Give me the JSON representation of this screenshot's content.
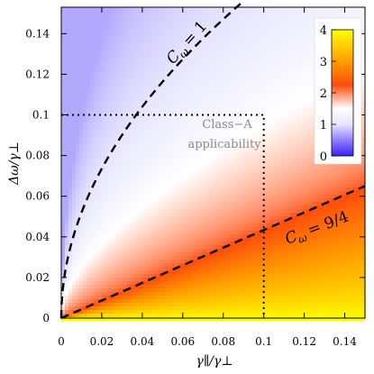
{
  "chart_data": {
    "type": "heatmap",
    "title": "",
    "xlabel": "γ∥/γ⊥",
    "ylabel": "Δω/γ⊥",
    "xlim": [
      0,
      0.15
    ],
    "ylim": [
      0,
      0.153
    ],
    "x_ticks": [
      0,
      0.02,
      0.04,
      0.06,
      0.08,
      0.1,
      0.12,
      0.14
    ],
    "x_tick_labels": [
      "0",
      "0.02",
      "0.04",
      "0.06",
      "0.08",
      "0.1",
      "0.12",
      "0.14"
    ],
    "y_ticks": [
      0,
      0.02,
      0.04,
      0.06,
      0.08,
      0.1,
      0.12,
      0.14
    ],
    "y_tick_labels": [
      "0",
      "0.02",
      "0.04",
      "0.06",
      "0.08",
      "0.1",
      "0.12",
      "0.14"
    ],
    "grid": false,
    "colorbar": {
      "position": "top-right",
      "range": [
        0,
        4
      ],
      "ticks": [
        0,
        1,
        2,
        3,
        4
      ],
      "tick_labels": [
        "0",
        "1",
        "2",
        "3",
        "4"
      ],
      "colors": [
        {
          "value": 0,
          "color": "#3a1eff"
        },
        {
          "value": 1,
          "color": "#e6e4ff"
        },
        {
          "value": 1.5,
          "color": "#ffffff"
        },
        {
          "value": 2.25,
          "color": "#ff4c0c"
        },
        {
          "value": 3,
          "color": "#ff9f00"
        },
        {
          "value": 4,
          "color": "#ffff00"
        }
      ]
    },
    "contours": [
      {
        "label": "C_ω = 1",
        "display": {
          "C": "C",
          "sub": "ω",
          "rhs": "= 1"
        },
        "level": 1,
        "x": [
          0,
          0.003,
          0.01,
          0.02,
          0.03,
          0.04,
          0.05,
          0.06,
          0.07
        ],
        "y": [
          0,
          0.0285,
          0.052,
          0.0735,
          0.09,
          0.104,
          0.1163,
          0.1274,
          0.1376
        ]
      },
      {
        "label": "C_ω = 9/4",
        "display": {
          "C": "C",
          "sub": "ω",
          "rhs": "= 9/4"
        },
        "level": 2.25,
        "x": [
          0,
          0.15
        ],
        "y": [
          0,
          0.065
        ]
      }
    ],
    "region": {
      "label_lines": [
        "Class−A",
        "applicability"
      ],
      "x": [
        0,
        0.1
      ],
      "y": [
        0,
        0.1
      ]
    }
  }
}
